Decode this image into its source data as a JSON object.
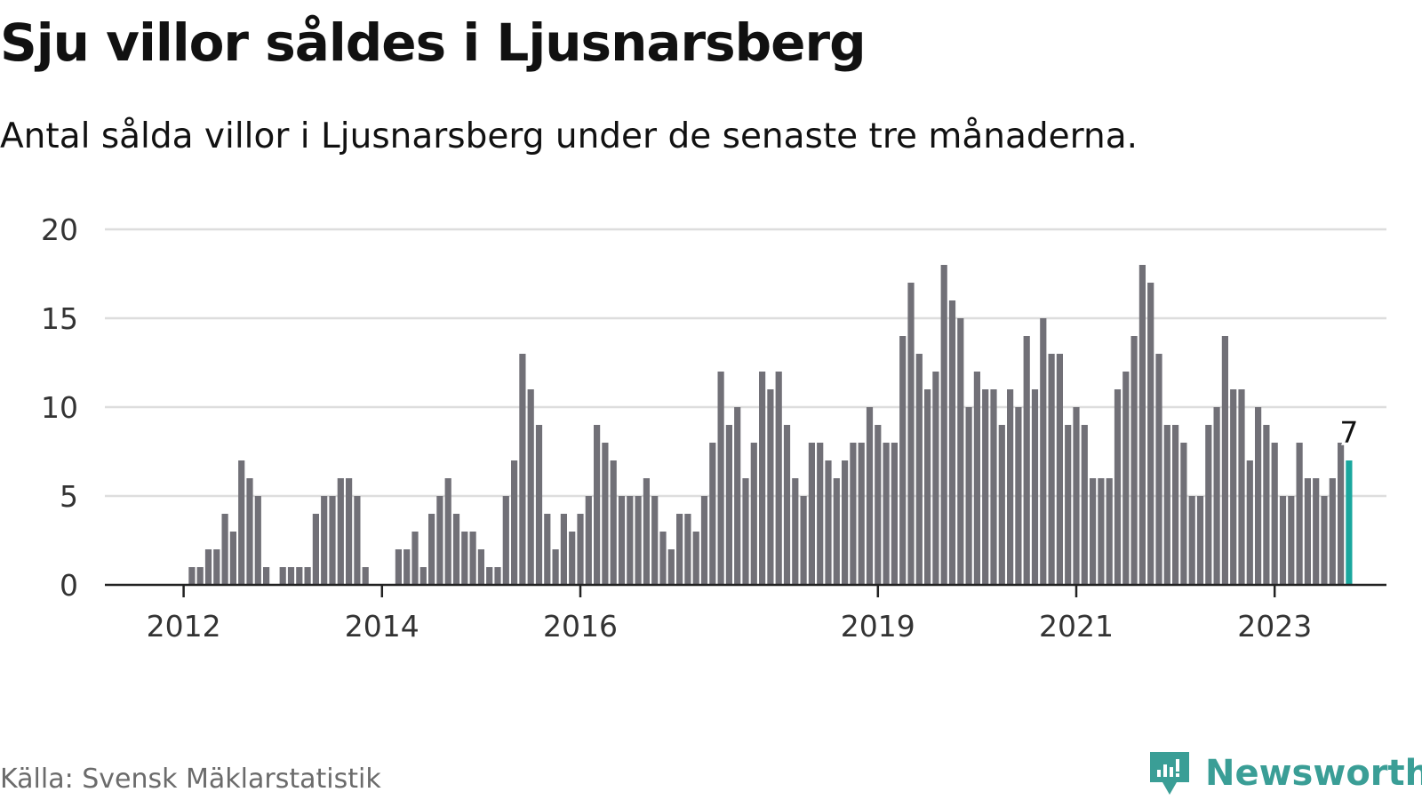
{
  "title": "Sju villor såldes i Ljusnarsberg",
  "subtitle": "Antal sålda villor i Ljusnarsberg under de senaste tre månaderna.",
  "source": "Källa: Svensk Mäklarstatistik",
  "brand": {
    "name": "Newsworthy",
    "icon": "newsworthy-logo-icon",
    "color": "#3a9e96"
  },
  "colors": {
    "bar": "#717077",
    "highlight": "#1aa79e",
    "grid": "#dddddd",
    "axis": "#222222",
    "text": "#333333"
  },
  "chart_data": {
    "type": "bar",
    "title": "Sju villor såldes i Ljusnarsberg",
    "xlabel": "",
    "ylabel": "",
    "ylim": [
      0,
      20
    ],
    "yticks": [
      0,
      5,
      10,
      15,
      20
    ],
    "grid": true,
    "x_tick_labels": [
      {
        "label": "2012",
        "index": 7
      },
      {
        "label": "2014",
        "index": 31
      },
      {
        "label": "2016",
        "index": 55
      },
      {
        "label": "2019",
        "index": 91
      },
      {
        "label": "2021",
        "index": 115
      },
      {
        "label": "2023",
        "index": 139
      }
    ],
    "values": [
      0,
      0,
      0,
      0,
      0,
      0,
      0,
      0,
      1,
      1,
      2,
      2,
      4,
      3,
      7,
      6,
      5,
      1,
      0,
      1,
      1,
      1,
      1,
      4,
      5,
      5,
      6,
      6,
      5,
      1,
      0,
      0,
      0,
      2,
      2,
      3,
      1,
      4,
      5,
      6,
      4,
      3,
      3,
      2,
      1,
      1,
      5,
      7,
      13,
      11,
      9,
      4,
      2,
      4,
      3,
      4,
      5,
      9,
      8,
      7,
      5,
      5,
      5,
      6,
      5,
      3,
      2,
      4,
      4,
      3,
      5,
      8,
      12,
      9,
      10,
      6,
      8,
      12,
      11,
      12,
      9,
      6,
      5,
      8,
      8,
      7,
      6,
      7,
      8,
      8,
      10,
      9,
      8,
      8,
      14,
      17,
      13,
      11,
      12,
      18,
      16,
      15,
      10,
      12,
      11,
      11,
      9,
      11,
      10,
      14,
      11,
      15,
      13,
      13,
      9,
      10,
      9,
      6,
      6,
      6,
      11,
      12,
      14,
      18,
      17,
      13,
      9,
      9,
      8,
      5,
      5,
      9,
      10,
      14,
      11,
      11,
      7,
      10,
      9,
      8,
      5,
      5,
      8,
      6,
      6,
      5,
      6,
      8,
      7
    ],
    "highlight": {
      "index": 148,
      "value": 7,
      "label": "7"
    }
  }
}
